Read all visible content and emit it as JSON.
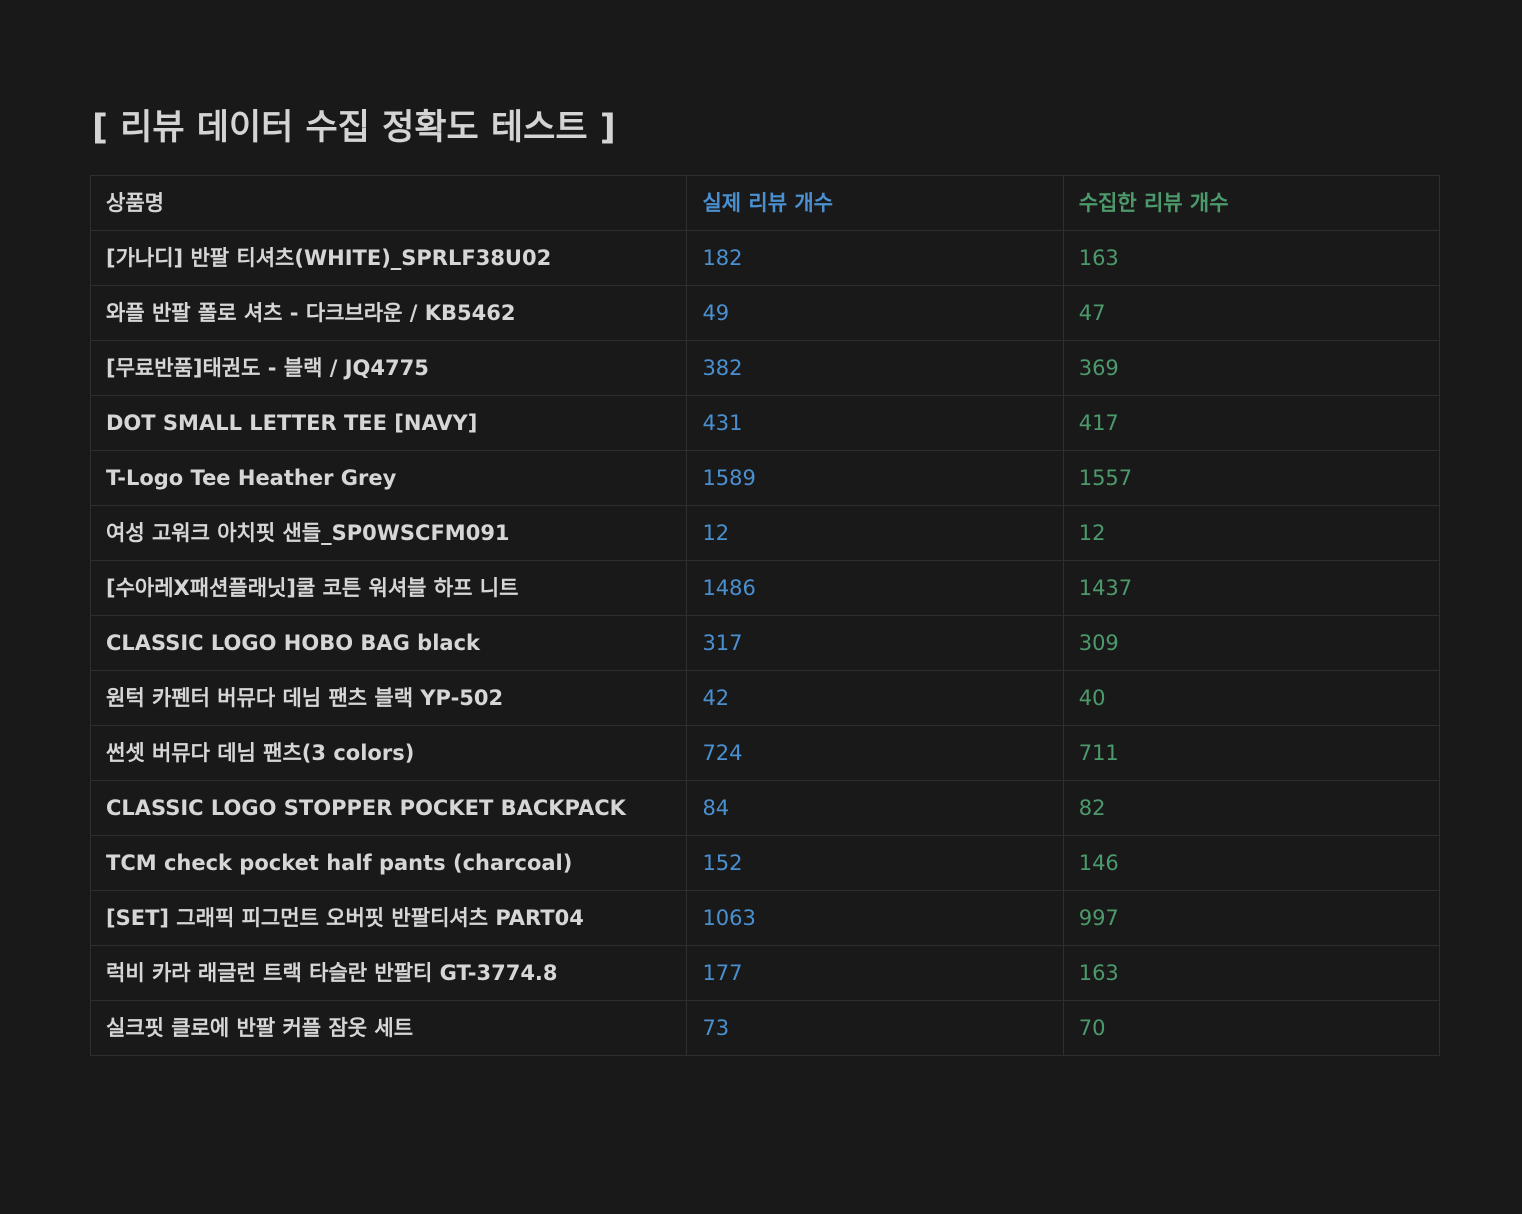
{
  "page": {
    "title": "[ 리뷰 데이터 수집 정확도 테스트 ]"
  },
  "table": {
    "headers": [
      "상품명",
      "실제 리뷰 개수",
      "수집한 리뷰 개수"
    ],
    "rows": [
      {
        "name": "[가나디] 반팔 티셔츠(WHITE)_SPRLF38U02",
        "actual": "182",
        "collected": "163"
      },
      {
        "name": "와플 반팔 폴로 셔츠 - 다크브라운 / KB5462",
        "actual": "49",
        "collected": "47"
      },
      {
        "name": "[무료반품]태권도 - 블랙 / JQ4775",
        "actual": "382",
        "collected": "369"
      },
      {
        "name": "DOT SMALL LETTER TEE [NAVY]",
        "actual": "431",
        "collected": "417"
      },
      {
        "name": "T-Logo Tee Heather Grey",
        "actual": "1589",
        "collected": "1557"
      },
      {
        "name": "여성 고워크 아치핏 샌들_SP0WSCFM091",
        "actual": "12",
        "collected": "12"
      },
      {
        "name": "[수아레X패션플래닛]쿨 코튼 워셔블 하프 니트",
        "actual": "1486",
        "collected": "1437"
      },
      {
        "name": "CLASSIC LOGO HOBO BAG black",
        "actual": "317",
        "collected": "309"
      },
      {
        "name": "원턱 카펜터 버뮤다 데님 팬츠 블랙 YP-502",
        "actual": "42",
        "collected": "40"
      },
      {
        "name": "썬셋 버뮤다 데님 팬츠(3 colors)",
        "actual": "724",
        "collected": "711"
      },
      {
        "name": "CLASSIC LOGO STOPPER POCKET BACKPACK",
        "actual": "84",
        "collected": "82"
      },
      {
        "name": "TCM check pocket half pants (charcoal)",
        "actual": "152",
        "collected": "146"
      },
      {
        "name": "[SET] 그래픽 피그먼트 오버핏 반팔티셔츠 PART04",
        "actual": "1063",
        "collected": "997"
      },
      {
        "name": "럭비 카라 래글런 트랙 타슬란 반팔티 GT-3774.8",
        "actual": "177",
        "collected": "163"
      },
      {
        "name": "실크핏 클로에 반팔 커플 잠옷 세트",
        "actual": "73",
        "collected": "70"
      }
    ]
  },
  "colors": {
    "background": "#191919",
    "text": "#d4d4d4",
    "actual_column": "#4a90d0",
    "collected_column": "#4c9a6c",
    "border": "#2e2e2e"
  }
}
